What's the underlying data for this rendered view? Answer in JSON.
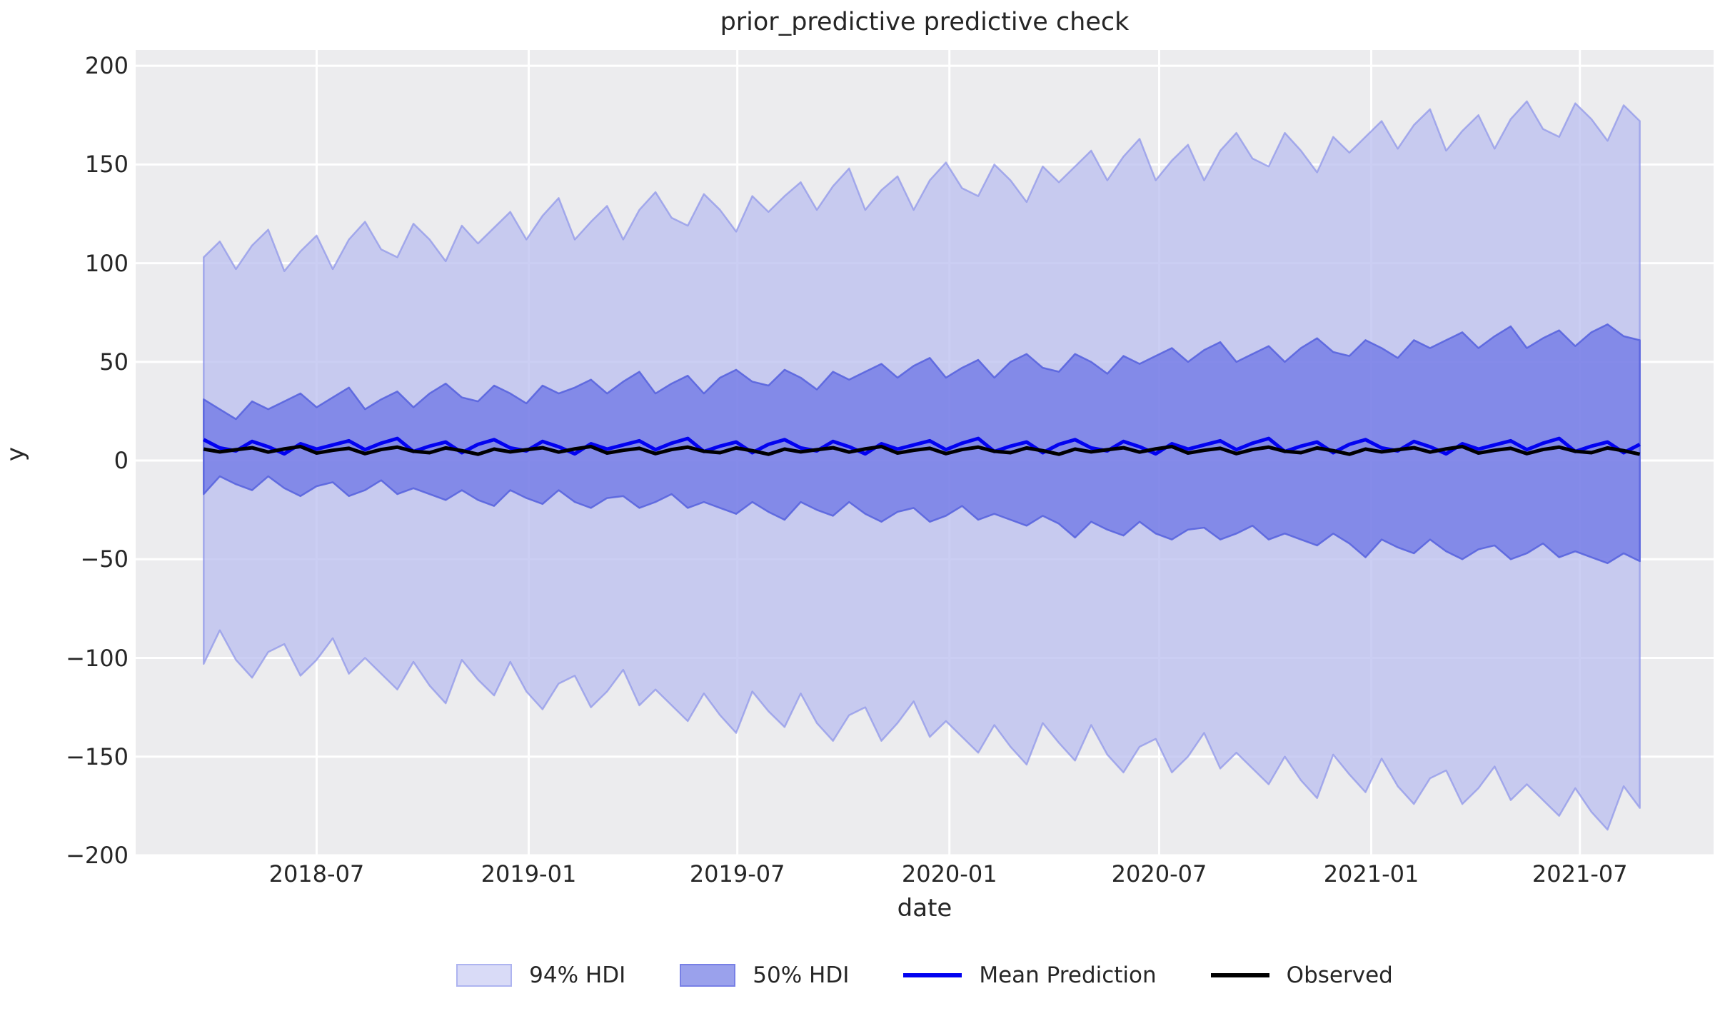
{
  "figure": {
    "title": "prior_predictive predictive check",
    "xlabel": "date",
    "ylabel": "y",
    "background_color": "#ffffff",
    "plot_background_color": "#ececee",
    "grid_color": "#ffffff",
    "text_color": "#262626"
  },
  "axes": {
    "ylim": [
      -200,
      208
    ],
    "xlim_dates": [
      "2018-01-25",
      "2021-10-25"
    ],
    "grid": true,
    "yticks": [
      {
        "value": 200,
        "label": "200"
      },
      {
        "value": 150,
        "label": "150"
      },
      {
        "value": 100,
        "label": "100"
      },
      {
        "value": 50,
        "label": "50"
      },
      {
        "value": 0,
        "label": "0"
      },
      {
        "value": -50,
        "label": "−50"
      },
      {
        "value": -100,
        "label": "−100"
      },
      {
        "value": -150,
        "label": "−150"
      },
      {
        "value": -200,
        "label": "−200"
      }
    ],
    "xticks": [
      {
        "date": "2018-07-01",
        "label": "2018-07"
      },
      {
        "date": "2019-01-01",
        "label": "2019-01"
      },
      {
        "date": "2019-07-01",
        "label": "2019-07"
      },
      {
        "date": "2020-01-01",
        "label": "2020-01"
      },
      {
        "date": "2020-07-01",
        "label": "2020-07"
      },
      {
        "date": "2021-01-01",
        "label": "2021-01"
      },
      {
        "date": "2021-07-01",
        "label": "2021-07"
      }
    ]
  },
  "legend": [
    {
      "type": "patch",
      "label": "94% HDI",
      "fill": "#d9dbf7",
      "border": "#aeb4f0"
    },
    {
      "type": "patch",
      "label": "50% HDI",
      "fill": "#9aa1ec",
      "border": "#7880e5"
    },
    {
      "type": "line",
      "label": "Mean Prediction",
      "color": "#0202f0"
    },
    {
      "type": "line",
      "label": "Observed",
      "color": "#000000"
    }
  ],
  "chart_data": {
    "type": "area",
    "title": "prior_predictive predictive check",
    "xlabel": "date",
    "ylabel": "y",
    "ylim": [
      -200,
      208
    ],
    "grid": true,
    "legend_position": "bottom center",
    "x_frequency": "biweekly",
    "x_dates": [
      "2018-03-25",
      "2018-04-08",
      "2018-04-22",
      "2018-05-06",
      "2018-05-20",
      "2018-06-03",
      "2018-06-17",
      "2018-07-01",
      "2018-07-15",
      "2018-07-29",
      "2018-08-12",
      "2018-08-26",
      "2018-09-09",
      "2018-09-23",
      "2018-10-07",
      "2018-10-21",
      "2018-11-04",
      "2018-11-18",
      "2018-12-02",
      "2018-12-16",
      "2018-12-30",
      "2019-01-13",
      "2019-01-27",
      "2019-02-10",
      "2019-02-24",
      "2019-03-10",
      "2019-03-24",
      "2019-04-07",
      "2019-04-21",
      "2019-05-05",
      "2019-05-19",
      "2019-06-02",
      "2019-06-16",
      "2019-06-30",
      "2019-07-14",
      "2019-07-28",
      "2019-08-11",
      "2019-08-25",
      "2019-09-08",
      "2019-09-22",
      "2019-10-06",
      "2019-10-20",
      "2019-11-03",
      "2019-11-17",
      "2019-12-01",
      "2019-12-15",
      "2019-12-29",
      "2020-01-12",
      "2020-01-26",
      "2020-02-09",
      "2020-02-23",
      "2020-03-08",
      "2020-03-22",
      "2020-04-05",
      "2020-04-19",
      "2020-05-03",
      "2020-05-17",
      "2020-05-31",
      "2020-06-14",
      "2020-06-28",
      "2020-07-12",
      "2020-07-26",
      "2020-08-09",
      "2020-08-23",
      "2020-09-06",
      "2020-09-20",
      "2020-10-04",
      "2020-10-18",
      "2020-11-01",
      "2020-11-15",
      "2020-11-29",
      "2020-12-13",
      "2020-12-27",
      "2021-01-10",
      "2021-01-24",
      "2021-02-07",
      "2021-02-21",
      "2021-03-07",
      "2021-03-21",
      "2021-04-04",
      "2021-04-18",
      "2021-05-02",
      "2021-05-16",
      "2021-05-30",
      "2021-06-13",
      "2021-06-27",
      "2021-07-11",
      "2021-07-25",
      "2021-08-08",
      "2021-08-22"
    ],
    "series": [
      {
        "name": "94% HDI",
        "role": "band",
        "fill": "#bcc0f0",
        "fill_opacity": 0.78,
        "edge": "#858ee8",
        "edge_opacity": 0.65,
        "upper": [
          103,
          111,
          97,
          109,
          117,
          96,
          106,
          114,
          97,
          112,
          121,
          107,
          103,
          120,
          112,
          101,
          119,
          110,
          118,
          126,
          112,
          124,
          133,
          112,
          121,
          129,
          112,
          127,
          136,
          123,
          119,
          135,
          127,
          116,
          134,
          126,
          134,
          141,
          127,
          139,
          148,
          127,
          137,
          144,
          127,
          142,
          151,
          138,
          134,
          150,
          142,
          131,
          149,
          141,
          149,
          157,
          142,
          154,
          163,
          142,
          152,
          160,
          142,
          157,
          166,
          153,
          149,
          166,
          157,
          146,
          164,
          156,
          164,
          172,
          158,
          170,
          178,
          157,
          167,
          175,
          158,
          173,
          182,
          168,
          164,
          181,
          173,
          162,
          180,
          172
        ],
        "lower": [
          -103,
          -86,
          -101,
          -110,
          -97,
          -93,
          -109,
          -101,
          -90,
          -108,
          -100,
          -108,
          -116,
          -102,
          -114,
          -123,
          -101,
          -111,
          -119,
          -102,
          -117,
          -126,
          -113,
          -109,
          -125,
          -117,
          -106,
          -124,
          -116,
          -124,
          -132,
          -118,
          -129,
          -138,
          -117,
          -127,
          -135,
          -118,
          -133,
          -142,
          -129,
          -125,
          -142,
          -133,
          -122,
          -140,
          -132,
          -140,
          -148,
          -134,
          -145,
          -154,
          -133,
          -143,
          -152,
          -134,
          -149,
          -158,
          -145,
          -141,
          -158,
          -150,
          -138,
          -156,
          -148,
          -156,
          -164,
          -150,
          -162,
          -171,
          -149,
          -159,
          -168,
          -151,
          -165,
          -174,
          -161,
          -157,
          -174,
          -166,
          -155,
          -172,
          -164,
          -172,
          -180,
          -166,
          -178,
          -187,
          -165,
          -176
        ]
      },
      {
        "name": "50% HDI",
        "role": "band",
        "fill": "#6972e4",
        "fill_opacity": 0.72,
        "edge": "#5560dd",
        "edge_opacity": 0.85,
        "upper": [
          31,
          26,
          21,
          30,
          26,
          30,
          34,
          27,
          32,
          37,
          26,
          31,
          35,
          27,
          34,
          39,
          32,
          30,
          38,
          34,
          29,
          38,
          34,
          37,
          41,
          34,
          40,
          45,
          34,
          39,
          43,
          34,
          42,
          46,
          40,
          38,
          46,
          42,
          36,
          45,
          41,
          45,
          49,
          42,
          48,
          52,
          42,
          47,
          51,
          42,
          50,
          54,
          47,
          45,
          54,
          50,
          44,
          53,
          49,
          53,
          57,
          50,
          56,
          60,
          50,
          54,
          58,
          50,
          57,
          62,
          55,
          53,
          61,
          57,
          52,
          61,
          57,
          61,
          65,
          57,
          63,
          68,
          57,
          62,
          66,
          58,
          65,
          69,
          63,
          61
        ],
        "lower": [
          -17,
          -8,
          -12,
          -15,
          -8,
          -14,
          -18,
          -13,
          -11,
          -18,
          -15,
          -10,
          -17,
          -14,
          -17,
          -20,
          -15,
          -20,
          -23,
          -15,
          -19,
          -22,
          -15,
          -21,
          -24,
          -19,
          -18,
          -24,
          -21,
          -17,
          -24,
          -21,
          -24,
          -27,
          -21,
          -26,
          -30,
          -21,
          -25,
          -28,
          -21,
          -27,
          -31,
          -26,
          -24,
          -31,
          -28,
          -23,
          -30,
          -27,
          -30,
          -33,
          -28,
          -32,
          -39,
          -31,
          -35,
          -38,
          -31,
          -37,
          -40,
          -35,
          -34,
          -40,
          -37,
          -33,
          -40,
          -37,
          -40,
          -43,
          -37,
          -42,
          -49,
          -40,
          -44,
          -47,
          -40,
          -46,
          -50,
          -45,
          -43,
          -50,
          -47,
          -42,
          -49,
          -46,
          -49,
          -52,
          -47,
          -51
        ]
      },
      {
        "name": "Mean Prediction",
        "role": "line",
        "color": "#0202f0",
        "width": 5,
        "values": [
          10.6,
          6.4,
          4.9,
          9.7,
          7,
          3.4,
          8.5,
          5.8,
          7.9,
          10,
          5.5,
          8.8,
          11.2,
          4.6,
          7.3,
          9.4,
          4,
          8.2,
          10.6,
          6.4,
          4.9,
          9.7,
          7,
          3.4,
          8.5,
          5.8,
          7.9,
          10,
          5.5,
          8.8,
          11.2,
          4.6,
          7.3,
          9.4,
          4,
          8.2,
          10.6,
          6.4,
          4.9,
          9.7,
          7,
          3.4,
          8.5,
          5.8,
          7.9,
          10,
          5.5,
          8.8,
          11.2,
          4.6,
          7.3,
          9.4,
          4,
          8.2,
          10.6,
          6.4,
          4.9,
          9.7,
          7,
          3.4,
          8.5,
          5.8,
          7.9,
          10,
          5.5,
          8.8,
          11.2,
          4.6,
          7.3,
          9.4,
          4,
          8.2,
          10.6,
          6.4,
          4.9,
          9.7,
          7,
          3.4,
          8.5,
          5.8,
          7.9,
          10,
          5.5,
          8.8,
          11.2,
          4.6,
          7.3,
          9.4,
          4,
          8.2
        ]
      },
      {
        "name": "Observed",
        "role": "line",
        "color": "#000000",
        "width": 5,
        "values": [
          5.8,
          4.4,
          5.5,
          6.5,
          4.3,
          5.9,
          7.1,
          3.8,
          5.2,
          6.2,
          3.5,
          5.6,
          6.8,
          4.7,
          4,
          6.4,
          5,
          3.2,
          5.8,
          4.4,
          5.5,
          6.5,
          4.3,
          5.9,
          7.1,
          3.8,
          5.2,
          6.2,
          3.5,
          5.6,
          6.8,
          4.7,
          4,
          6.4,
          5,
          3.2,
          5.8,
          4.4,
          5.5,
          6.5,
          4.3,
          5.9,
          7.1,
          3.8,
          5.2,
          6.2,
          3.5,
          5.6,
          6.8,
          4.7,
          4,
          6.4,
          5,
          3.2,
          5.8,
          4.4,
          5.5,
          6.5,
          4.3,
          5.9,
          7.1,
          3.8,
          5.2,
          6.2,
          3.5,
          5.6,
          6.8,
          4.7,
          4,
          6.4,
          5,
          3.2,
          5.8,
          4.4,
          5.5,
          6.5,
          4.3,
          5.9,
          7.1,
          3.8,
          5.2,
          6.2,
          3.5,
          5.6,
          6.8,
          4.7,
          4,
          6.4,
          5,
          3.2
        ]
      }
    ]
  }
}
